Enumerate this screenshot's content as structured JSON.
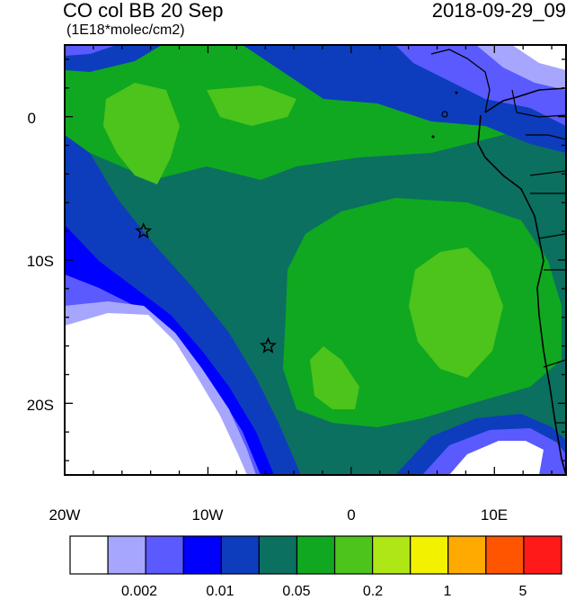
{
  "title": {
    "left": "CO col BB 20 Sep",
    "units": "(1E18*molec/cm2)",
    "right": "2018-09-29_09"
  },
  "axes": {
    "x_labels": [
      "20W",
      "10W",
      "0",
      "10E"
    ],
    "y_labels": [
      "0",
      "10S",
      "20S"
    ]
  },
  "colorbar": {
    "colors": [
      "#ffffff",
      "#a6a6ff",
      "#5a5aff",
      "#0000ff",
      "#0d3dbd",
      "#0b7060",
      "#10a820",
      "#4cc41c",
      "#aee616",
      "#f2f200",
      "#ffaa00",
      "#ff5500",
      "#ff1a1a"
    ],
    "labels": [
      "0.002",
      "0.01",
      "0.05",
      "0.2",
      "1",
      "5"
    ]
  },
  "markers": [
    {
      "name": "star-marker-west",
      "lon": -14.5,
      "lat": -8
    },
    {
      "name": "star-marker-central",
      "lon": -5.8,
      "lat": -16
    }
  ],
  "map": {
    "lon_range": [
      -20,
      15
    ],
    "lat_range": [
      -25,
      5
    ],
    "colors": {
      "background_teal": "#0b7060",
      "green": "#10a820",
      "light_green": "#4cc41c",
      "blue": "#0d3dbd",
      "bright_blue": "#0000ff",
      "mid_blue": "#5a5aff",
      "pale_blue": "#a6a6ff",
      "white": "#ffffff",
      "coast": "#000000"
    }
  }
}
